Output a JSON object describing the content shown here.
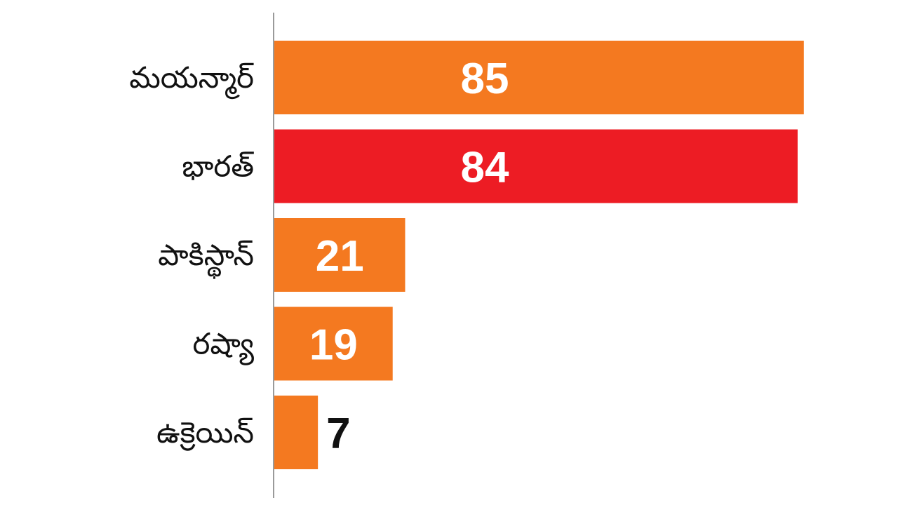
{
  "chart_data": {
    "type": "bar",
    "orientation": "horizontal",
    "categories": [
      "మయన్మార్",
      "భారత్",
      "పాకిస్థాన్",
      "రష్యా",
      "ఉక్రెయిన్"
    ],
    "values": [
      85,
      84,
      21,
      19,
      7
    ],
    "colors": [
      "#f47920",
      "#ed1c24",
      "#f47920",
      "#f47920",
      "#f47920"
    ]
  }
}
